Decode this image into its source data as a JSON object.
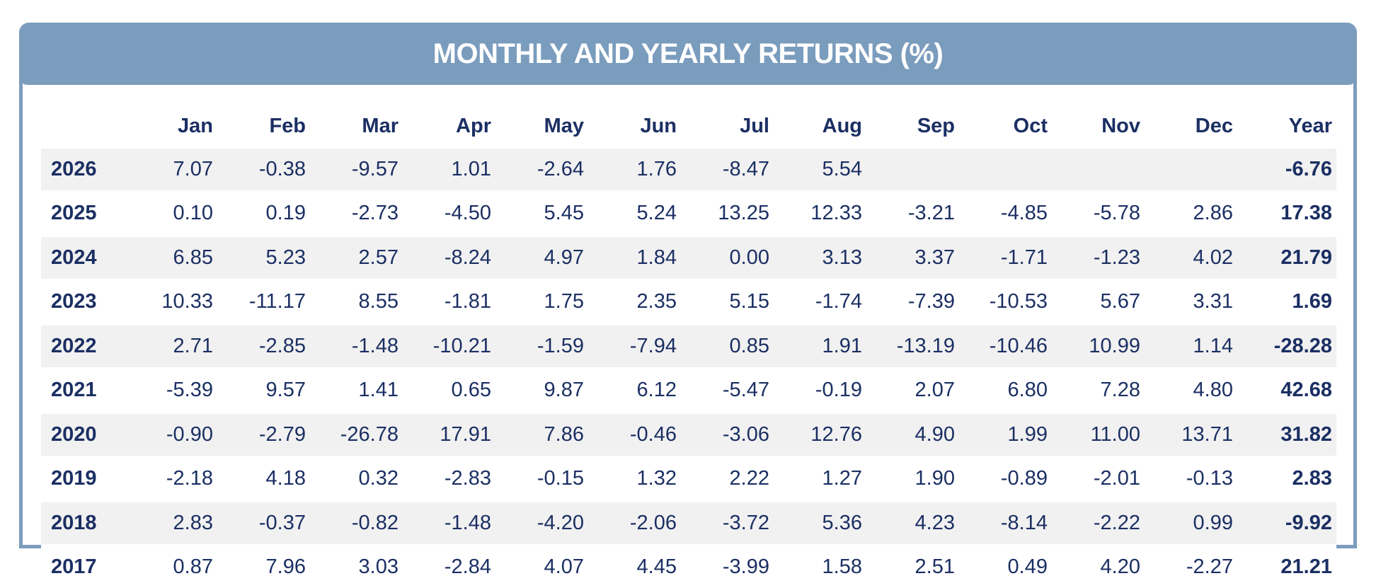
{
  "chart_data": {
    "type": "table",
    "title": "MONTHLY AND YEARLY RETURNS (%)",
    "columns": [
      "Jan",
      "Feb",
      "Mar",
      "Apr",
      "May",
      "Jun",
      "Jul",
      "Aug",
      "Sep",
      "Oct",
      "Nov",
      "Dec",
      "Year"
    ],
    "rows": [
      {
        "year": "2026",
        "values": [
          "7.07",
          "-0.38",
          "-9.57",
          "1.01",
          "-2.64",
          "1.76",
          "-8.47",
          "5.54",
          "",
          "",
          "",
          ""
        ],
        "total": "-6.76"
      },
      {
        "year": "2025",
        "values": [
          "0.10",
          "0.19",
          "-2.73",
          "-4.50",
          "5.45",
          "5.24",
          "13.25",
          "12.33",
          "-3.21",
          "-4.85",
          "-5.78",
          "2.86"
        ],
        "total": "17.38"
      },
      {
        "year": "2024",
        "values": [
          "6.85",
          "5.23",
          "2.57",
          "-8.24",
          "4.97",
          "1.84",
          "0.00",
          "3.13",
          "3.37",
          "-1.71",
          "-1.23",
          "4.02"
        ],
        "total": "21.79"
      },
      {
        "year": "2023",
        "values": [
          "10.33",
          "-11.17",
          "8.55",
          "-1.81",
          "1.75",
          "2.35",
          "5.15",
          "-1.74",
          "-7.39",
          "-10.53",
          "5.67",
          "3.31"
        ],
        "total": "1.69"
      },
      {
        "year": "2022",
        "values": [
          "2.71",
          "-2.85",
          "-1.48",
          "-10.21",
          "-1.59",
          "-7.94",
          "0.85",
          "1.91",
          "-13.19",
          "-10.46",
          "10.99",
          "1.14"
        ],
        "total": "-28.28"
      },
      {
        "year": "2021",
        "values": [
          "-5.39",
          "9.57",
          "1.41",
          "0.65",
          "9.87",
          "6.12",
          "-5.47",
          "-0.19",
          "2.07",
          "6.80",
          "7.28",
          "4.80"
        ],
        "total": "42.68"
      },
      {
        "year": "2020",
        "values": [
          "-0.90",
          "-2.79",
          "-26.78",
          "17.91",
          "7.86",
          "-0.46",
          "-3.06",
          "12.76",
          "4.90",
          "1.99",
          "11.00",
          "13.71"
        ],
        "total": "31.82"
      },
      {
        "year": "2019",
        "values": [
          "-2.18",
          "4.18",
          "0.32",
          "-2.83",
          "-0.15",
          "1.32",
          "2.22",
          "1.27",
          "1.90",
          "-0.89",
          "-2.01",
          "-0.13"
        ],
        "total": "2.83"
      },
      {
        "year": "2018",
        "values": [
          "2.83",
          "-0.37",
          "-0.82",
          "-1.48",
          "-4.20",
          "-2.06",
          "-3.72",
          "5.36",
          "4.23",
          "-8.14",
          "-2.22",
          "0.99"
        ],
        "total": "-9.92"
      },
      {
        "year": "2017",
        "values": [
          "0.87",
          "7.96",
          "3.03",
          "-2.84",
          "4.07",
          "4.45",
          "-3.99",
          "1.58",
          "2.51",
          "0.49",
          "4.20",
          "-2.27"
        ],
        "total": "21.21"
      }
    ]
  },
  "colors": {
    "header_bg": "#7a9cbd",
    "text": "#1b2f63",
    "row_shade": "#f1f1f1"
  }
}
